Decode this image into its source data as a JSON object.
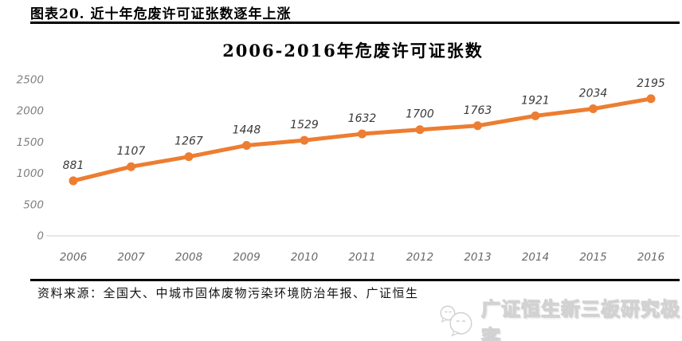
{
  "header": {
    "title": "图表20. 近十年危废许可证张数逐年上涨"
  },
  "chart_data": {
    "type": "line",
    "title": "2006-2016年危废许可证张数",
    "categories": [
      "2006",
      "2007",
      "2008",
      "2009",
      "2010",
      "2011",
      "2012",
      "2013",
      "2014",
      "2015",
      "2016"
    ],
    "values": [
      881,
      1107,
      1267,
      1448,
      1529,
      1632,
      1700,
      1763,
      1921,
      2034,
      2195
    ],
    "data_labels": [
      "881",
      "1107",
      "1267",
      "1448",
      "1529",
      "1632",
      "1700",
      "1763",
      "1921",
      "2034",
      "2195"
    ],
    "ylim": [
      0,
      2500
    ],
    "yticks": [
      0,
      500,
      1000,
      1500,
      2000,
      2500
    ],
    "grid": false,
    "legend": "none",
    "xlabel": "",
    "ylabel": "",
    "line_color": "#ED7D31",
    "marker_color": "#ED7D31",
    "axis_line_color": "#d6d6d6",
    "tick_label_color": "#808080",
    "data_label_color": "#3a3a3a"
  },
  "source": {
    "text": "资料来源：全国大、中城市固体废物污染环境防治年报、广证恒生"
  },
  "watermark": {
    "text": "广证恒生新三板研究极客",
    "icon": "chat-bubbles-icon"
  }
}
